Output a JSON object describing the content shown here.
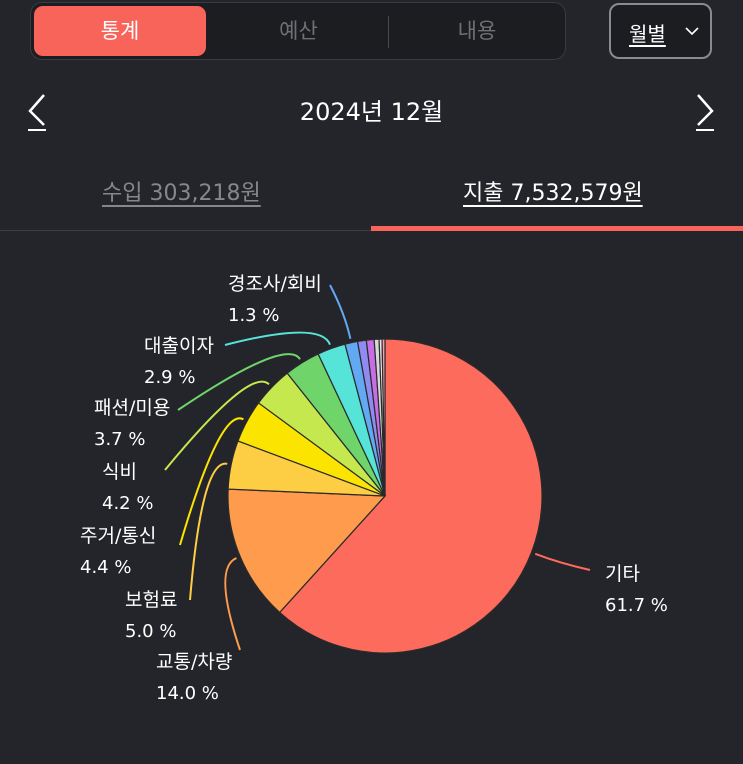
{
  "segmented": {
    "tabs": [
      "통계",
      "예산",
      "내용"
    ],
    "active_index": 0
  },
  "period_selector": {
    "label": "월별"
  },
  "month_label": "2024년 12월",
  "summary_tabs": {
    "income": "수입 303,218원",
    "expense": "지출 7,532,579원",
    "active": "expense"
  },
  "colors": {
    "accent": "#f8635a",
    "background": "#24252a"
  },
  "chart_data": {
    "type": "pie",
    "title": "",
    "slices": [
      {
        "label": "기타",
        "percent_label": "61.7 %",
        "value": 61.7,
        "color": "#fd6b5d"
      },
      {
        "label": "교통/차량",
        "percent_label": "14.0 %",
        "value": 14.0,
        "color": "#fe9b4c"
      },
      {
        "label": "보험료",
        "percent_label": "5.0 %",
        "value": 5.0,
        "color": "#fdcd44"
      },
      {
        "label": "주거/통신",
        "percent_label": "4.4 %",
        "value": 4.4,
        "color": "#fbe400"
      },
      {
        "label": "식비",
        "percent_label": "4.2 %",
        "value": 4.2,
        "color": "#c6e84f"
      },
      {
        "label": "패션/미용",
        "percent_label": "3.7 %",
        "value": 3.7,
        "color": "#6fd56b"
      },
      {
        "label": "대출이자",
        "percent_label": "2.9 %",
        "value": 2.9,
        "color": "#56e3d8"
      },
      {
        "label": "경조사/회비",
        "percent_label": "1.3 %",
        "value": 1.3,
        "color": "#62a8f2"
      },
      {
        "label": "",
        "percent_label": "",
        "value": 0.9,
        "color": "#8f8bf0"
      },
      {
        "label": "",
        "percent_label": "",
        "value": 0.8,
        "color": "#c56ee6"
      },
      {
        "label": "",
        "percent_label": "",
        "value": 0.5,
        "color": "#d8d8d8"
      },
      {
        "label": "",
        "percent_label": "",
        "value": 0.3,
        "color": "#e8e8e8"
      },
      {
        "label": "",
        "percent_label": "",
        "value": 0.3,
        "color": "#f2a0b8"
      }
    ]
  }
}
